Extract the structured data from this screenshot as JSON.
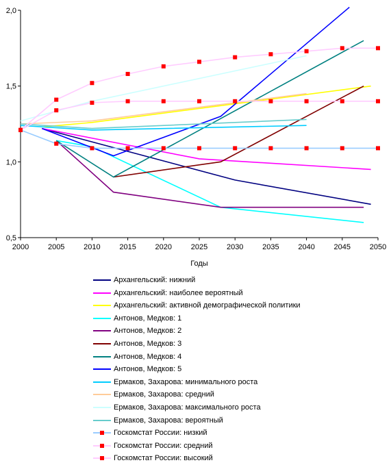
{
  "chart_data": {
    "type": "line",
    "xlabel": "Годы",
    "ylabel": "",
    "xlim": [
      2000,
      2050
    ],
    "ylim": [
      0.5,
      2.0
    ],
    "xticks": [
      2000,
      2005,
      2010,
      2015,
      2020,
      2025,
      2030,
      2035,
      2040,
      2045,
      2050
    ],
    "yticks": [
      "0,5",
      "1,0",
      "1,5",
      "2,0"
    ],
    "ytick_values": [
      0.5,
      1.0,
      1.5,
      2.0
    ],
    "grid": false,
    "legend_position": "bottom",
    "series": [
      {
        "name": "Архангельский:  нижний",
        "color": "#000080",
        "marker": "none",
        "x": [
          2003,
          2030,
          2049
        ],
        "y": [
          1.22,
          0.88,
          0.72
        ]
      },
      {
        "name": "Архангельский:  наиболее вероятный",
        "color": "#ff00ff",
        "marker": "none",
        "x": [
          2003,
          2025,
          2049
        ],
        "y": [
          1.22,
          1.02,
          0.95
        ]
      },
      {
        "name": "Архангельский:  активной демографической политики",
        "color": "#ffff00",
        "marker": "none",
        "x": [
          2003,
          2010,
          2049
        ],
        "y": [
          1.23,
          1.26,
          1.5
        ]
      },
      {
        "name": "Антонов, Медков:  1",
        "color": "#00ffff",
        "marker": "none",
        "x": [
          2005,
          2010,
          2028,
          2048
        ],
        "y": [
          1.14,
          1.1,
          0.7,
          0.6
        ]
      },
      {
        "name": "Антонов, Медков:  2",
        "color": "#800080",
        "marker": "none",
        "x": [
          2005,
          2013,
          2028,
          2048
        ],
        "y": [
          1.14,
          0.8,
          0.7,
          0.7
        ]
      },
      {
        "name": "Антонов, Медков:  3",
        "color": "#800000",
        "marker": "none",
        "x": [
          2013,
          2028,
          2048
        ],
        "y": [
          0.9,
          1.0,
          1.5
        ]
      },
      {
        "name": "Антонов, Медков:  4",
        "color": "#008080",
        "marker": "none",
        "x": [
          2005,
          2013,
          2048
        ],
        "y": [
          1.14,
          0.9,
          1.8
        ]
      },
      {
        "name": "Антонов, Медков:  5",
        "color": "#0000ff",
        "marker": "none",
        "x": [
          2003,
          2013,
          2028,
          2046
        ],
        "y": [
          1.22,
          1.04,
          1.3,
          2.02
        ]
      },
      {
        "name": "Ермаков, Захарова:  минимального роста",
        "color": "#00ccff",
        "marker": "none",
        "x": [
          2000,
          2010,
          2040
        ],
        "y": [
          1.24,
          1.21,
          1.24
        ]
      },
      {
        "name": "Ермаков, Захарова:  средний",
        "color": "#ffcc99",
        "marker": "none",
        "x": [
          2000,
          2010,
          2040
        ],
        "y": [
          1.25,
          1.27,
          1.45
        ]
      },
      {
        "name": "Ермаков, Захарова:  максимального роста",
        "color": "#ccffff",
        "marker": "none",
        "x": [
          2000,
          2010,
          2040
        ],
        "y": [
          1.27,
          1.4,
          1.7
        ]
      },
      {
        "name": "Ермаков, Захарова:  вероятный",
        "color": "#66cccc",
        "marker": "none",
        "x": [
          2000,
          2010,
          2040
        ],
        "y": [
          1.25,
          1.22,
          1.28
        ]
      },
      {
        "name": "Госкомстат России:  низкий",
        "color": "#99ccff",
        "marker": "square",
        "x": [
          2000,
          2005,
          2010,
          2015,
          2020,
          2025,
          2030,
          2035,
          2040,
          2045,
          2050
        ],
        "y": [
          1.21,
          1.12,
          1.09,
          1.09,
          1.09,
          1.09,
          1.09,
          1.09,
          1.09,
          1.09,
          1.09
        ]
      },
      {
        "name": "Госкомстат России:  средний",
        "color": "#ffccff",
        "marker": "square",
        "x": [
          2000,
          2005,
          2010,
          2015,
          2020,
          2025,
          2030,
          2035,
          2040,
          2045,
          2050
        ],
        "y": [
          1.21,
          1.34,
          1.39,
          1.4,
          1.4,
          1.4,
          1.4,
          1.4,
          1.4,
          1.4,
          1.4
        ]
      },
      {
        "name": "Госкомстат России:  высокий",
        "color": "#ffccff",
        "marker": "square",
        "x": [
          2000,
          2005,
          2010,
          2015,
          2020,
          2025,
          2030,
          2035,
          2040,
          2045,
          2050
        ],
        "y": [
          1.21,
          1.41,
          1.52,
          1.58,
          1.63,
          1.66,
          1.69,
          1.71,
          1.73,
          1.75,
          1.75
        ]
      }
    ]
  },
  "marker_color": "#ff0000",
  "axis_color": "#000000"
}
